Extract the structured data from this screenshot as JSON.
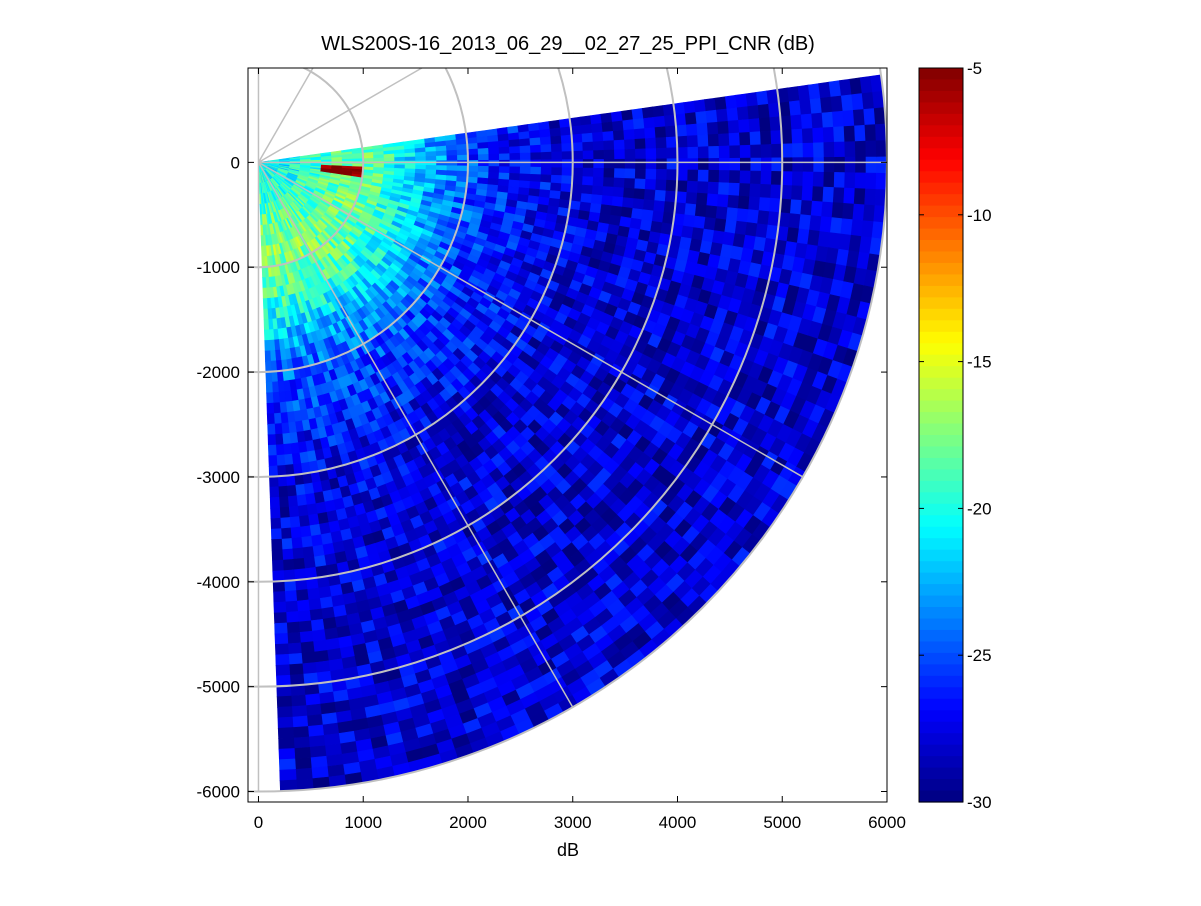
{
  "chart_data": {
    "type": "heatmap",
    "subtype": "polar-ppi",
    "title": "WLS200S-16_2013_06_29__02_27_25_PPI_CNR (dB)",
    "xlabel": "dB",
    "ylabel": "",
    "xlim": [
      -100,
      6000
    ],
    "ylim": [
      -6100,
      900
    ],
    "x_ticks": [
      0,
      1000,
      2000,
      3000,
      4000,
      5000,
      6000
    ],
    "x_tick_labels": [
      "0",
      "1000",
      "2000",
      "3000",
      "4000",
      "5000",
      "6000"
    ],
    "y_ticks": [
      0,
      -1000,
      -2000,
      -3000,
      -4000,
      -5000,
      -6000
    ],
    "y_tick_labels": [
      "0",
      "-1000",
      "-2000",
      "-3000",
      "-4000",
      "-5000",
      "-6000"
    ],
    "scan": {
      "azimuth_start_deg": 8,
      "azimuth_end_deg": -88,
      "range_min_m": 0,
      "range_max_m": 6000,
      "n_range_gates": 60,
      "n_beams": 64
    },
    "polar_grid": {
      "range_rings_m": [
        1000,
        2000,
        3000,
        4000,
        5000,
        6000
      ],
      "spoke_angles_deg": [
        90,
        60,
        30,
        0,
        -30,
        -60,
        -90
      ],
      "color": "#c0c0c0"
    },
    "features": [
      {
        "name": "hard target",
        "azimuth_deg": -5,
        "range_m": 800,
        "value_db": -5
      },
      {
        "name": "near-range high CNR",
        "range_m": 1000,
        "value_db": -17
      }
    ],
    "colorbar": {
      "colormap": "jet",
      "vmin": -30,
      "vmax": -5,
      "ticks": [
        -5,
        -10,
        -15,
        -20,
        -25,
        -30
      ],
      "tick_labels": [
        "-5",
        "-10",
        "-15",
        "-20",
        "-25",
        "-30"
      ]
    },
    "grid": false,
    "legend": "none"
  }
}
